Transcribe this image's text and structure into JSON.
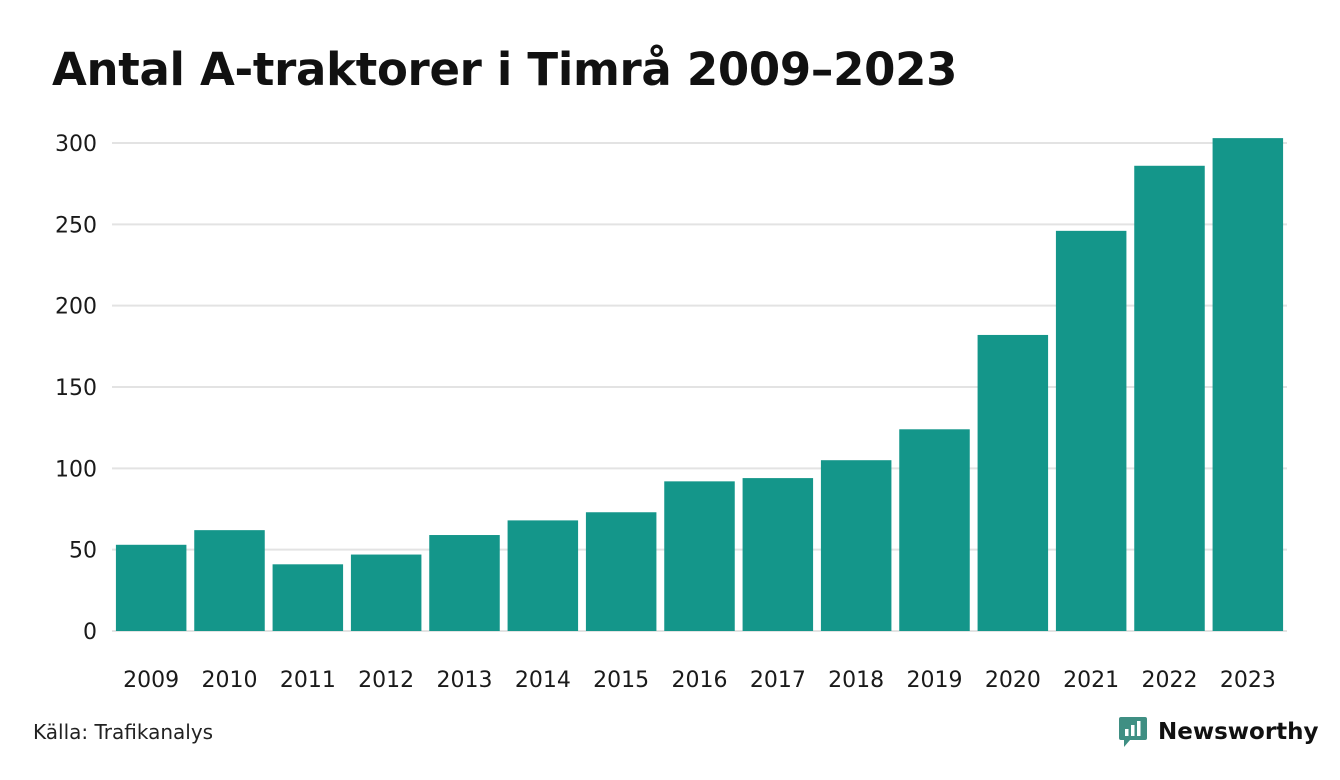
{
  "colors": {
    "bar": "#14968a",
    "grid": "#e3e3e3",
    "brand": "#3f8f83"
  },
  "chart_data": {
    "type": "bar",
    "title": "Antal A-traktorer i Timrå 2009–2023",
    "xlabel": "",
    "ylabel": "",
    "categories": [
      "2009",
      "2010",
      "2011",
      "2012",
      "2013",
      "2014",
      "2015",
      "2016",
      "2017",
      "2018",
      "2019",
      "2020",
      "2021",
      "2022",
      "2023"
    ],
    "values": [
      53,
      62,
      41,
      47,
      59,
      68,
      73,
      92,
      94,
      105,
      124,
      182,
      246,
      286,
      303
    ],
    "ylim": [
      0,
      300
    ],
    "yticks": [
      0,
      50,
      100,
      150,
      200,
      250,
      300
    ],
    "grid": true,
    "legend": "none"
  },
  "footer": {
    "source": "Källa: Trafikanalys",
    "brand": "Newsworthy",
    "brand_icon": "newsworthy-logo-icon"
  }
}
